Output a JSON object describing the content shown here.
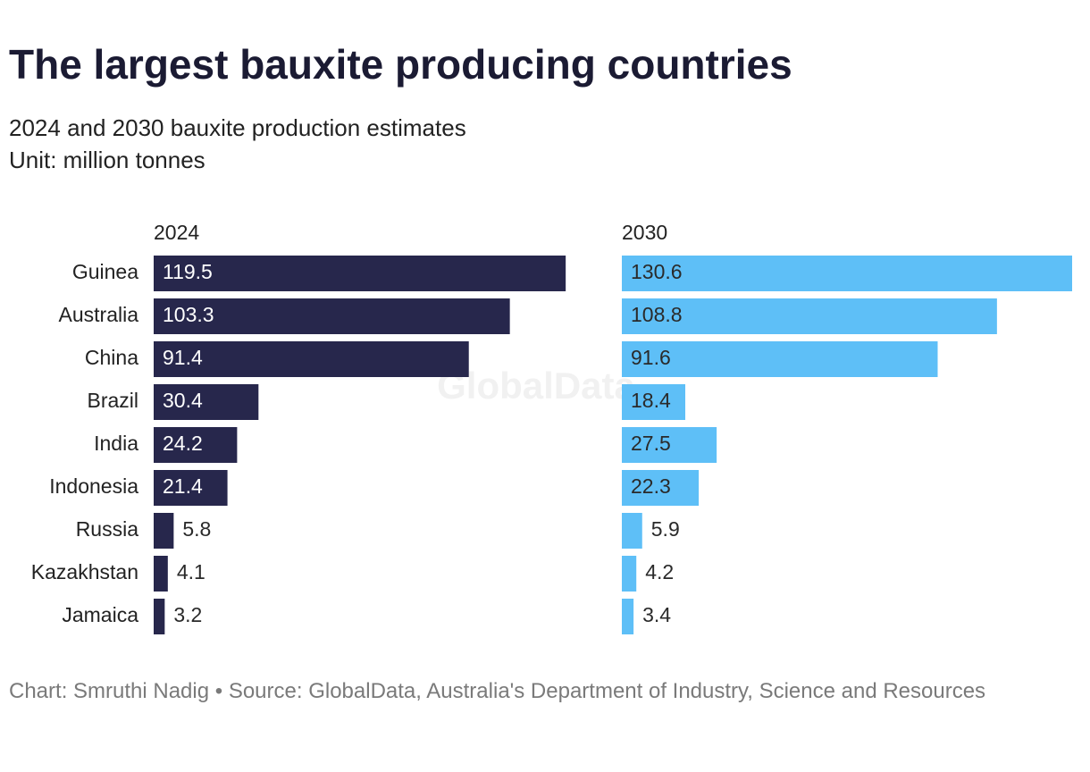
{
  "chart_data": {
    "type": "bar",
    "title": "The largest bauxite producing countries",
    "subtitle": [
      "2024 and 2030 bauxite production estimates",
      "Unit: million tonnes"
    ],
    "categories": [
      "Guinea",
      "Australia",
      "China",
      "Brazil",
      "India",
      "Indonesia",
      "Russia",
      "Kazakhstan",
      "Jamaica"
    ],
    "series": [
      {
        "name": "2024",
        "color": "#27274c",
        "values": [
          119.5,
          103.3,
          91.4,
          30.4,
          24.2,
          21.4,
          5.8,
          4.1,
          3.2
        ]
      },
      {
        "name": "2030",
        "color": "#5ebff7",
        "values": [
          130.6,
          108.8,
          91.6,
          18.4,
          27.5,
          22.3,
          5.9,
          4.2,
          3.4
        ]
      }
    ],
    "watermark": "GlobalData",
    "note": "Chart: Smruthi Nadig • Source: GlobalData, Australia's Department of Industry, Science and Resources"
  }
}
